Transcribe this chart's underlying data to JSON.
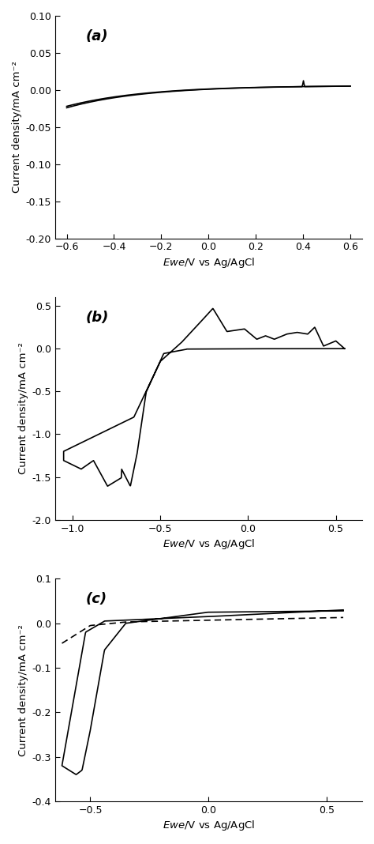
{
  "fig_width": 4.74,
  "fig_height": 10.68,
  "dpi": 100,
  "background_color": "#ffffff",
  "line_color": "#000000",
  "ylabel": "Current density/mA cm⁻²",
  "panels": [
    {
      "label": "(a)",
      "ylim": [
        -0.2,
        0.1
      ],
      "yticks": [
        -0.2,
        -0.15,
        -0.1,
        -0.05,
        0.0,
        0.05,
        0.1
      ],
      "xlim": [
        -0.65,
        0.65
      ],
      "xticks": [
        -0.6,
        -0.4,
        -0.2,
        0.0,
        0.2,
        0.4,
        0.6
      ]
    },
    {
      "label": "(b)",
      "ylim": [
        -2.0,
        0.6
      ],
      "yticks": [
        -2.0,
        -1.5,
        -1.0,
        -0.5,
        0.0,
        0.5
      ],
      "xlim": [
        -1.1,
        0.65
      ],
      "xticks": [
        -1.0,
        -0.5,
        0.0,
        0.5
      ]
    },
    {
      "label": "(c)",
      "ylim": [
        -0.4,
        0.1
      ],
      "yticks": [
        -0.4,
        -0.3,
        -0.2,
        -0.1,
        0.0,
        0.1
      ],
      "xlim": [
        -0.65,
        0.65
      ],
      "xticks": [
        -0.5,
        0.0,
        0.5
      ]
    }
  ]
}
